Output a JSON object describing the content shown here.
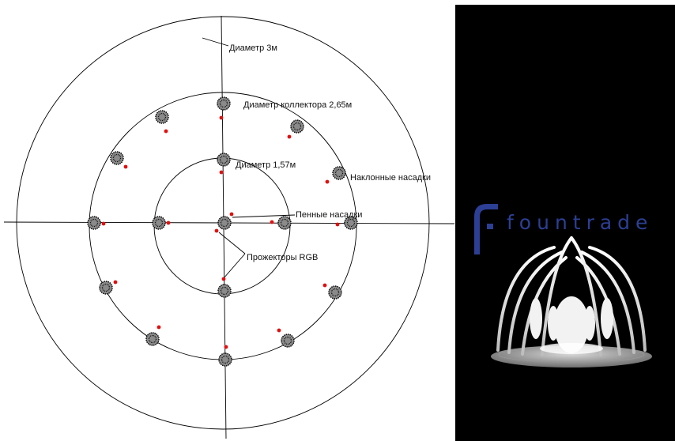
{
  "diagram": {
    "labels": {
      "outer_diameter": "Диаметр 3м",
      "collector_diameter": "Диаметр коллектора  2,65м",
      "inner_diameter": "Диаметр 1,57м",
      "inclined_nozzles": "Наклонные насадки",
      "foam_nozzles": "Пенные насадки",
      "rgb_projectors": "Прожекторы RGB"
    },
    "colors": {
      "line": "#000000",
      "projector": "#e01010"
    }
  },
  "brand": {
    "name": "fountrade",
    "color": "#2c3f94",
    "background": "#000000"
  }
}
